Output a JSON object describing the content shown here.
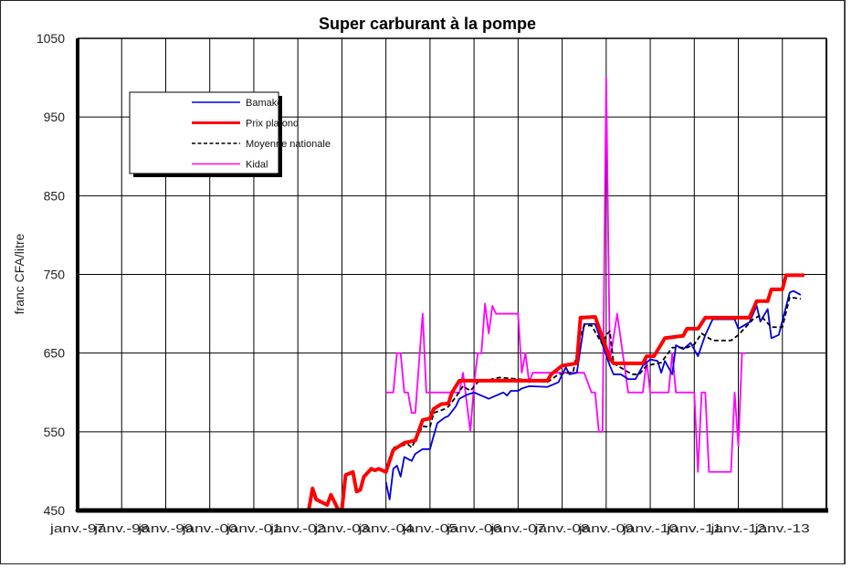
{
  "chart_data": {
    "type": "line",
    "title": "Super carburant à la pompe",
    "xlabel": "",
    "ylabel": "franc CFA/litre",
    "ylim": [
      450,
      1050
    ],
    "xlim": [
      "1997-01",
      "2014-01"
    ],
    "yticks": [
      "450",
      "550",
      "650",
      "750",
      "850",
      "950",
      "1050"
    ],
    "xticks": [
      "janv.-97",
      "janv.-98",
      "janv.-99",
      "janv.-00",
      "janv.-01",
      "janv.-02",
      "janv.-03",
      "janv.-04",
      "janv.-05",
      "janv.-06",
      "janv.-07",
      "janv.-08",
      "janv.-09",
      "janv.-10",
      "janv.-11",
      "janv.-12",
      "janv.-13"
    ],
    "grid": true,
    "legend_position": "top-left",
    "series": [
      {
        "name": "Bamako",
        "color": "#0000dd",
        "style": "solid",
        "points": [
          [
            "2004-01",
            486
          ],
          [
            "2004-02",
            464
          ],
          [
            "2004-03",
            503
          ],
          [
            "2004-04",
            507
          ],
          [
            "2004-05",
            493
          ],
          [
            "2004-06",
            518
          ],
          [
            "2004-08",
            513
          ],
          [
            "2004-09",
            522
          ],
          [
            "2004-11",
            528
          ],
          [
            "2005-01",
            528
          ],
          [
            "2005-02",
            545
          ],
          [
            "2005-03",
            561
          ],
          [
            "2005-05",
            568
          ],
          [
            "2005-06",
            570
          ],
          [
            "2005-08",
            582
          ],
          [
            "2005-09",
            592
          ],
          [
            "2005-11",
            597
          ],
          [
            "2006-01",
            600
          ],
          [
            "2006-03",
            596
          ],
          [
            "2006-05",
            592
          ],
          [
            "2006-07",
            596
          ],
          [
            "2006-09",
            600
          ],
          [
            "2006-10",
            596
          ],
          [
            "2006-11",
            602
          ],
          [
            "2007-01",
            602
          ],
          [
            "2007-02",
            605
          ],
          [
            "2007-04",
            608
          ],
          [
            "2007-09",
            607
          ],
          [
            "2007-11",
            611
          ],
          [
            "2007-12",
            613
          ],
          [
            "2008-02",
            632
          ],
          [
            "2008-03",
            623
          ],
          [
            "2008-05",
            625
          ],
          [
            "2008-07",
            687
          ],
          [
            "2008-10",
            687
          ],
          [
            "2009-02",
            634
          ],
          [
            "2009-03",
            623
          ],
          [
            "2009-05",
            623
          ],
          [
            "2009-07",
            617
          ],
          [
            "2009-09",
            617
          ],
          [
            "2009-11",
            634
          ],
          [
            "2010-01",
            642
          ],
          [
            "2010-03",
            640
          ],
          [
            "2010-04",
            625
          ],
          [
            "2010-05",
            640
          ],
          [
            "2010-07",
            623
          ],
          [
            "2010-08",
            660
          ],
          [
            "2010-10",
            655
          ],
          [
            "2010-12",
            663
          ],
          [
            "2011-02",
            646
          ],
          [
            "2011-04",
            673
          ],
          [
            "2011-06",
            693
          ],
          [
            "2011-12",
            693
          ],
          [
            "2012-01",
            681
          ],
          [
            "2012-04",
            689
          ],
          [
            "2012-06",
            710
          ],
          [
            "2012-07",
            690
          ],
          [
            "2012-09",
            706
          ],
          [
            "2012-10",
            669
          ],
          [
            "2012-12",
            673
          ],
          [
            "2013-03",
            727
          ],
          [
            "2013-04",
            729
          ],
          [
            "2013-06",
            724
          ]
        ]
      },
      {
        "name": "Prix plafond",
        "color": "#ff0000",
        "style": "thick",
        "points": [
          [
            "2002-04",
            451
          ],
          [
            "2002-05",
            478
          ],
          [
            "2002-06",
            464
          ],
          [
            "2002-09",
            457
          ],
          [
            "2002-10",
            470
          ],
          [
            "2002-12",
            451
          ],
          [
            "2003-01",
            451
          ],
          [
            "2003-02",
            495
          ],
          [
            "2003-04",
            499
          ],
          [
            "2003-05",
            474
          ],
          [
            "2003-06",
            476
          ],
          [
            "2003-07",
            493
          ],
          [
            "2003-09",
            503
          ],
          [
            "2003-10",
            501
          ],
          [
            "2003-11",
            503
          ],
          [
            "2004-01",
            499
          ],
          [
            "2004-03",
            527
          ],
          [
            "2004-06",
            536
          ],
          [
            "2004-09",
            539
          ],
          [
            "2004-11",
            565
          ],
          [
            "2005-01",
            567
          ],
          [
            "2005-02",
            579
          ],
          [
            "2005-04",
            585
          ],
          [
            "2005-06",
            586
          ],
          [
            "2005-07",
            600
          ],
          [
            "2005-09",
            615
          ],
          [
            "2007-09",
            615
          ],
          [
            "2007-10",
            623
          ],
          [
            "2008-01",
            634
          ],
          [
            "2008-05",
            637
          ],
          [
            "2008-06",
            695
          ],
          [
            "2008-10",
            696
          ],
          [
            "2009-02",
            643
          ],
          [
            "2009-03",
            637
          ],
          [
            "2009-11",
            637
          ],
          [
            "2009-12",
            646
          ],
          [
            "2010-02",
            646
          ],
          [
            "2010-05",
            669
          ],
          [
            "2010-10",
            672
          ],
          [
            "2010-11",
            681
          ],
          [
            "2011-02",
            681
          ],
          [
            "2011-04",
            695
          ],
          [
            "2012-04",
            695
          ],
          [
            "2012-06",
            716
          ],
          [
            "2012-09",
            716
          ],
          [
            "2012-10",
            731
          ],
          [
            "2013-01",
            731
          ],
          [
            "2013-02",
            749
          ],
          [
            "2013-07",
            749
          ]
        ]
      },
      {
        "name": "Moyenne nationale",
        "color": "#000000",
        "style": "dashed",
        "points": [
          [
            "2004-01",
            504
          ],
          [
            "2004-03",
            530
          ],
          [
            "2004-07",
            534
          ],
          [
            "2004-08",
            530
          ],
          [
            "2004-11",
            557
          ],
          [
            "2005-01",
            556
          ],
          [
            "2005-02",
            574
          ],
          [
            "2005-05",
            579
          ],
          [
            "2005-06",
            582
          ],
          [
            "2005-08",
            594
          ],
          [
            "2005-10",
            608
          ],
          [
            "2005-12",
            602
          ],
          [
            "2006-02",
            613
          ],
          [
            "2006-08",
            619
          ],
          [
            "2007-01",
            617
          ],
          [
            "2007-09",
            613
          ],
          [
            "2007-12",
            623
          ],
          [
            "2008-04",
            626
          ],
          [
            "2008-06",
            673
          ],
          [
            "2008-07",
            685
          ],
          [
            "2008-09",
            685
          ],
          [
            "2008-12",
            661
          ],
          [
            "2009-01",
            673
          ],
          [
            "2009-02",
            678
          ],
          [
            "2009-03",
            637
          ],
          [
            "2009-08",
            623
          ],
          [
            "2009-10",
            623
          ],
          [
            "2009-12",
            634
          ],
          [
            "2010-04",
            638
          ],
          [
            "2010-07",
            657
          ],
          [
            "2010-11",
            657
          ],
          [
            "2011-01",
            661
          ],
          [
            "2011-03",
            675
          ],
          [
            "2011-06",
            666
          ],
          [
            "2011-11",
            666
          ],
          [
            "2012-01",
            673
          ],
          [
            "2012-05",
            693
          ],
          [
            "2012-07",
            698
          ],
          [
            "2012-10",
            683
          ],
          [
            "2013-01",
            683
          ],
          [
            "2013-03",
            721
          ],
          [
            "2013-06",
            719
          ]
        ]
      },
      {
        "name": "Kidal",
        "color": "#ff00ff",
        "style": "solid",
        "points": [
          [
            "2004-01",
            600
          ],
          [
            "2004-03",
            600
          ],
          [
            "2004-04",
            650
          ],
          [
            "2004-05",
            650
          ],
          [
            "2004-06",
            600
          ],
          [
            "2004-07",
            600
          ],
          [
            "2004-08",
            574
          ],
          [
            "2004-09",
            574
          ],
          [
            "2004-11",
            700
          ],
          [
            "2004-12",
            600
          ],
          [
            "2005-09",
            600
          ],
          [
            "2005-10",
            625
          ],
          [
            "2005-12",
            550
          ],
          [
            "2006-01",
            611
          ],
          [
            "2006-02",
            650
          ],
          [
            "2006-03",
            650
          ],
          [
            "2006-04",
            713
          ],
          [
            "2006-05",
            675
          ],
          [
            "2006-06",
            710
          ],
          [
            "2006-07",
            700
          ],
          [
            "2007-01",
            700
          ],
          [
            "2007-02",
            625
          ],
          [
            "2007-03",
            650
          ],
          [
            "2007-04",
            613
          ],
          [
            "2007-05",
            625
          ],
          [
            "2008-07",
            625
          ],
          [
            "2008-09",
            600
          ],
          [
            "2008-10",
            600
          ],
          [
            "2008-11",
            550
          ],
          [
            "2008-12",
            550
          ],
          [
            "2009-01",
            1000
          ],
          [
            "2009-02",
            640
          ],
          [
            "2009-04",
            700
          ],
          [
            "2009-07",
            600
          ],
          [
            "2009-11",
            600
          ],
          [
            "2009-12",
            640
          ],
          [
            "2010-01",
            600
          ],
          [
            "2010-06",
            600
          ],
          [
            "2010-07",
            650
          ],
          [
            "2010-08",
            600
          ],
          [
            "2011-01",
            600
          ],
          [
            "2011-02",
            499
          ],
          [
            "2011-03",
            600
          ],
          [
            "2011-04",
            600
          ],
          [
            "2011-05",
            499
          ],
          [
            "2011-11",
            499
          ],
          [
            "2011-12",
            600
          ],
          [
            "2012-01",
            532
          ],
          [
            "2012-02",
            650
          ],
          [
            "2012-03",
            650
          ]
        ]
      }
    ]
  }
}
